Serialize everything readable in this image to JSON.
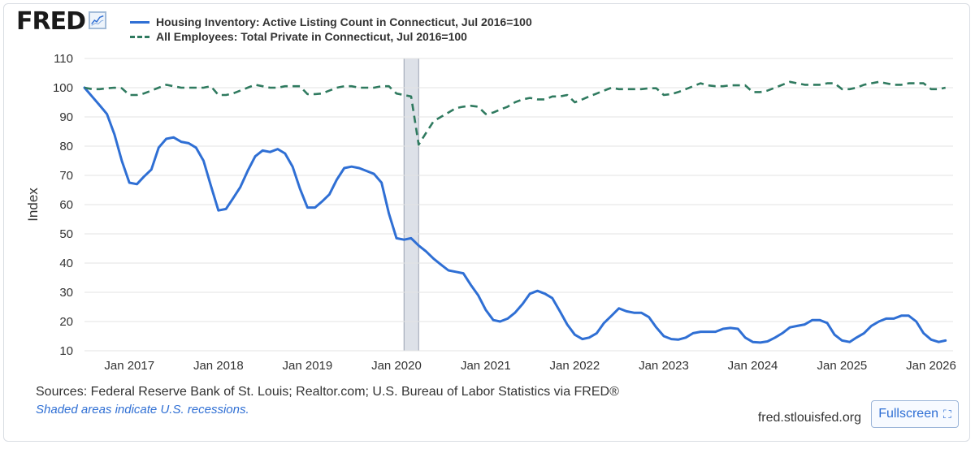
{
  "brand": {
    "name": "FRED"
  },
  "legend": [
    {
      "name": "Housing Inventory: Active Listing Count in Connecticut, Jul 2016=100",
      "color": "#2f6fd4",
      "style": "solid"
    },
    {
      "name": "All Employees: Total Private in Connecticut, Jul 2016=100",
      "color": "#2f7a5f",
      "style": "dashed"
    }
  ],
  "footer": {
    "sources": "Sources: Federal Reserve Bank of St. Louis; Realtor.com; U.S. Bureau of Labor Statistics via FRED®",
    "shaded_note": "Shaded areas indicate U.S. recessions.",
    "site": "fred.stlouisfed.org",
    "fullscreen_label": "Fullscreen"
  },
  "chart_data": {
    "type": "line",
    "ylabel": "Index",
    "ylim": [
      10,
      110
    ],
    "yticks": [
      10,
      20,
      30,
      40,
      50,
      60,
      70,
      80,
      90,
      100,
      110
    ],
    "xlim": [
      "2016-07-01",
      "2026-04-01"
    ],
    "xticks": [
      "Jan 2017",
      "Jan 2018",
      "Jan 2019",
      "Jan 2020",
      "Jan 2021",
      "Jan 2022",
      "Jan 2023",
      "Jan 2024",
      "Jan 2025",
      "Jan 2026"
    ],
    "xtick_dates": [
      "2017-01-01",
      "2018-01-01",
      "2019-01-01",
      "2020-01-01",
      "2021-01-01",
      "2022-01-01",
      "2023-01-01",
      "2024-01-01",
      "2025-01-01",
      "2026-01-01"
    ],
    "recessions": [
      {
        "start": "2020-02-01",
        "end": "2020-04-01"
      }
    ],
    "grid": true,
    "legend_position": "top",
    "series": [
      {
        "name": "Housing Inventory: Active Listing Count in Connecticut, Jul 2016=100",
        "color": "#2f6fd4",
        "style": "solid",
        "x": [
          "2016-07-01",
          "2016-08-01",
          "2016-09-01",
          "2016-10-01",
          "2016-11-01",
          "2016-12-01",
          "2017-01-01",
          "2017-02-01",
          "2017-03-01",
          "2017-04-01",
          "2017-05-01",
          "2017-06-01",
          "2017-07-01",
          "2017-08-01",
          "2017-09-01",
          "2017-10-01",
          "2017-11-01",
          "2017-12-01",
          "2018-01-01",
          "2018-02-01",
          "2018-03-01",
          "2018-04-01",
          "2018-05-01",
          "2018-06-01",
          "2018-07-01",
          "2018-08-01",
          "2018-09-01",
          "2018-10-01",
          "2018-11-01",
          "2018-12-01",
          "2019-01-01",
          "2019-02-01",
          "2019-03-01",
          "2019-04-01",
          "2019-05-01",
          "2019-06-01",
          "2019-07-01",
          "2019-08-01",
          "2019-09-01",
          "2019-10-01",
          "2019-11-01",
          "2019-12-01",
          "2020-01-01",
          "2020-02-01",
          "2020-03-01",
          "2020-04-01",
          "2020-05-01",
          "2020-06-01",
          "2020-07-01",
          "2020-08-01",
          "2020-09-01",
          "2020-10-01",
          "2020-11-01",
          "2020-12-01",
          "2021-01-01",
          "2021-02-01",
          "2021-03-01",
          "2021-04-01",
          "2021-05-01",
          "2021-06-01",
          "2021-07-01",
          "2021-08-01",
          "2021-09-01",
          "2021-10-01",
          "2021-11-01",
          "2021-12-01",
          "2022-01-01",
          "2022-02-01",
          "2022-03-01",
          "2022-04-01",
          "2022-05-01",
          "2022-06-01",
          "2022-07-01",
          "2022-08-01",
          "2022-09-01",
          "2022-10-01",
          "2022-11-01",
          "2022-12-01",
          "2023-01-01",
          "2023-02-01",
          "2023-03-01",
          "2023-04-01",
          "2023-05-01",
          "2023-06-01",
          "2023-07-01",
          "2023-08-01",
          "2023-09-01",
          "2023-10-01",
          "2023-11-01",
          "2023-12-01",
          "2024-01-01",
          "2024-02-01",
          "2024-03-01",
          "2024-04-01",
          "2024-05-01",
          "2024-06-01",
          "2024-07-01",
          "2024-08-01",
          "2024-09-01",
          "2024-10-01",
          "2024-11-01",
          "2024-12-01",
          "2025-01-01",
          "2025-02-01",
          "2025-03-01",
          "2025-04-01",
          "2025-05-01",
          "2025-06-01",
          "2025-07-01",
          "2025-08-01",
          "2025-09-01",
          "2025-10-01",
          "2025-11-01",
          "2025-12-01",
          "2026-01-01",
          "2026-02-01",
          "2026-03-01"
        ],
        "y": [
          100,
          97,
          94,
          91,
          84,
          75,
          67.5,
          67,
          69.5,
          72,
          79.5,
          82.5,
          83,
          81.5,
          81,
          79.5,
          75,
          66.5,
          58,
          58.5,
          62,
          66,
          71.5,
          76.5,
          78.5,
          78,
          79,
          77.5,
          73,
          65.5,
          59,
          59,
          61,
          63.5,
          68.5,
          72.5,
          73,
          72.5,
          71.5,
          70.5,
          67.5,
          57,
          48.5,
          48,
          48.5,
          46,
          44,
          41.5,
          39.5,
          37.5,
          37,
          36.5,
          32.5,
          29,
          24,
          20.5,
          20,
          21,
          23,
          26,
          29.5,
          30.5,
          29.5,
          28,
          23.5,
          19,
          15.5,
          14,
          14.5,
          16,
          19.5,
          22,
          24.5,
          23.5,
          23,
          23,
          21.5,
          18,
          15,
          14,
          13.8,
          14.5,
          16,
          16.5,
          16.5,
          16.5,
          17.5,
          17.8,
          17.5,
          14.5,
          13,
          12.8,
          13.2,
          14.5,
          16,
          18,
          18.5,
          19,
          20.5,
          20.5,
          19.5,
          15.5,
          13.5,
          13,
          14.5,
          16,
          18.5,
          20,
          21,
          21,
          22,
          22,
          20,
          16,
          13.8,
          13,
          13.5
        ]
      },
      {
        "name": "All Employees: Total Private in Connecticut, Jul 2016=100",
        "color": "#2f7a5f",
        "style": "dashed",
        "x": [
          "2016-07-01",
          "2016-08-01",
          "2016-09-01",
          "2016-10-01",
          "2016-11-01",
          "2016-12-01",
          "2017-01-01",
          "2017-02-01",
          "2017-03-01",
          "2017-04-01",
          "2017-05-01",
          "2017-06-01",
          "2017-07-01",
          "2017-08-01",
          "2017-09-01",
          "2017-10-01",
          "2017-11-01",
          "2017-12-01",
          "2018-01-01",
          "2018-02-01",
          "2018-03-01",
          "2018-04-01",
          "2018-05-01",
          "2018-06-01",
          "2018-07-01",
          "2018-08-01",
          "2018-09-01",
          "2018-10-01",
          "2018-11-01",
          "2018-12-01",
          "2019-01-01",
          "2019-02-01",
          "2019-03-01",
          "2019-04-01",
          "2019-05-01",
          "2019-06-01",
          "2019-07-01",
          "2019-08-01",
          "2019-09-01",
          "2019-10-01",
          "2019-11-01",
          "2019-12-01",
          "2020-01-01",
          "2020-02-01",
          "2020-03-01",
          "2020-04-01",
          "2020-05-01",
          "2020-06-01",
          "2020-07-01",
          "2020-08-01",
          "2020-09-01",
          "2020-10-01",
          "2020-11-01",
          "2020-12-01",
          "2021-01-01",
          "2021-02-01",
          "2021-03-01",
          "2021-04-01",
          "2021-05-01",
          "2021-06-01",
          "2021-07-01",
          "2021-08-01",
          "2021-09-01",
          "2021-10-01",
          "2021-11-01",
          "2021-12-01",
          "2022-01-01",
          "2022-02-01",
          "2022-03-01",
          "2022-04-01",
          "2022-05-01",
          "2022-06-01",
          "2022-07-01",
          "2022-08-01",
          "2022-09-01",
          "2022-10-01",
          "2022-11-01",
          "2022-12-01",
          "2023-01-01",
          "2023-02-01",
          "2023-03-01",
          "2023-04-01",
          "2023-05-01",
          "2023-06-01",
          "2023-07-01",
          "2023-08-01",
          "2023-09-01",
          "2023-10-01",
          "2023-11-01",
          "2023-12-01",
          "2024-01-01",
          "2024-02-01",
          "2024-03-01",
          "2024-04-01",
          "2024-05-01",
          "2024-06-01",
          "2024-07-01",
          "2024-08-01",
          "2024-09-01",
          "2024-10-01",
          "2024-11-01",
          "2024-12-01",
          "2025-01-01",
          "2025-02-01",
          "2025-03-01",
          "2025-04-01",
          "2025-05-01",
          "2025-06-01",
          "2025-07-01",
          "2025-08-01",
          "2025-09-01",
          "2025-10-01",
          "2025-11-01",
          "2025-12-01",
          "2026-01-01",
          "2026-02-01",
          "2026-03-01"
        ],
        "y": [
          100,
          99.5,
          99.5,
          99.8,
          100,
          99.8,
          97.5,
          97.5,
          98,
          99,
          100,
          101,
          100.5,
          100,
          100,
          100,
          100,
          100.5,
          97.5,
          97.5,
          98,
          99,
          100,
          101,
          100.5,
          100,
          100,
          100.5,
          100.5,
          100.5,
          97.8,
          97.8,
          98,
          99,
          100,
          100.5,
          100.5,
          100,
          100,
          100,
          100.5,
          100.5,
          98,
          97.5,
          97,
          80.5,
          84.5,
          88.5,
          90,
          91.5,
          93,
          93.5,
          93.8,
          93.5,
          91,
          91.5,
          92.5,
          93.5,
          95,
          96,
          96.5,
          96,
          96,
          97,
          97,
          97.5,
          95,
          96,
          97,
          98,
          99,
          100,
          99.5,
          99.5,
          99.5,
          99.5,
          99.8,
          99.8,
          97.5,
          97.8,
          98.5,
          99.5,
          100.5,
          101.5,
          100.8,
          100.5,
          100.5,
          100.8,
          100.8,
          100.8,
          98.5,
          98.5,
          99,
          100,
          101,
          102,
          101.5,
          101,
          101,
          101,
          101.5,
          101.5,
          99.5,
          99.5,
          100,
          101,
          101.5,
          102,
          101.5,
          101,
          101,
          101.5,
          101.5,
          101.5,
          99.5,
          99.5,
          100
        ]
      }
    ]
  }
}
